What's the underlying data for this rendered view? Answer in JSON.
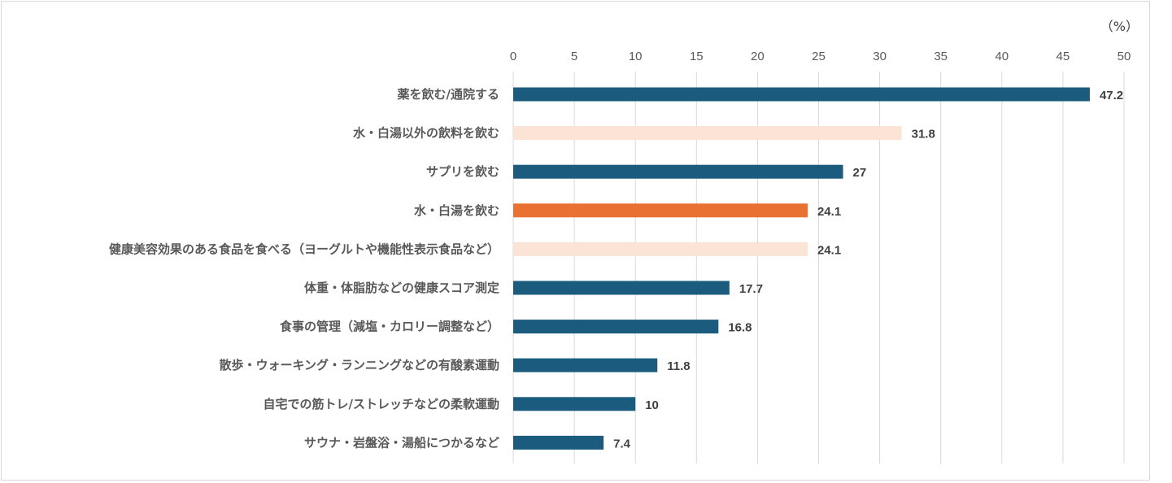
{
  "chart_data": {
    "type": "bar",
    "orientation": "horizontal",
    "title": "",
    "xlabel": "",
    "ylabel": "",
    "unit": "（%）",
    "xlim": [
      0,
      50
    ],
    "xticks": [
      0,
      5,
      10,
      15,
      20,
      25,
      30,
      35,
      40,
      45,
      50
    ],
    "x_axis_position": "top",
    "grid": "vertical",
    "legend": "none",
    "colors": {
      "dark": "#1b5c7e",
      "light": "#fbe3d6",
      "orange": "#e97132"
    },
    "categories": [
      "薬を飲む/通院する",
      "水・白湯以外の飲料を飲む",
      "サプリを飲む",
      "水・白湯を飲む",
      "健康美容効果のある食品を食べる（ヨーグルトや機能性表示食品など）",
      "体重・体脂肪などの健康スコア測定",
      "食事の管理（減塩・カロリー調整など）",
      "散歩・ウォーキング・ランニングなどの有酸素運動",
      "自宅での筋トレ/ストレッチなどの柔軟運動",
      "サウナ・岩盤浴・湯船につかるなど"
    ],
    "values": [
      47.2,
      31.8,
      27,
      24.1,
      24.1,
      17.7,
      16.8,
      11.8,
      10,
      7.4
    ],
    "value_labels": [
      "47.2",
      "31.8",
      "27",
      "24.1",
      "24.1",
      "17.7",
      "16.8",
      "11.8",
      "10",
      "7.4"
    ],
    "bar_colors": [
      "#1b5c7e",
      "#fbe3d6",
      "#1b5c7e",
      "#e97132",
      "#fbe3d6",
      "#1b5c7e",
      "#1b5c7e",
      "#1b5c7e",
      "#1b5c7e",
      "#1b5c7e"
    ]
  }
}
